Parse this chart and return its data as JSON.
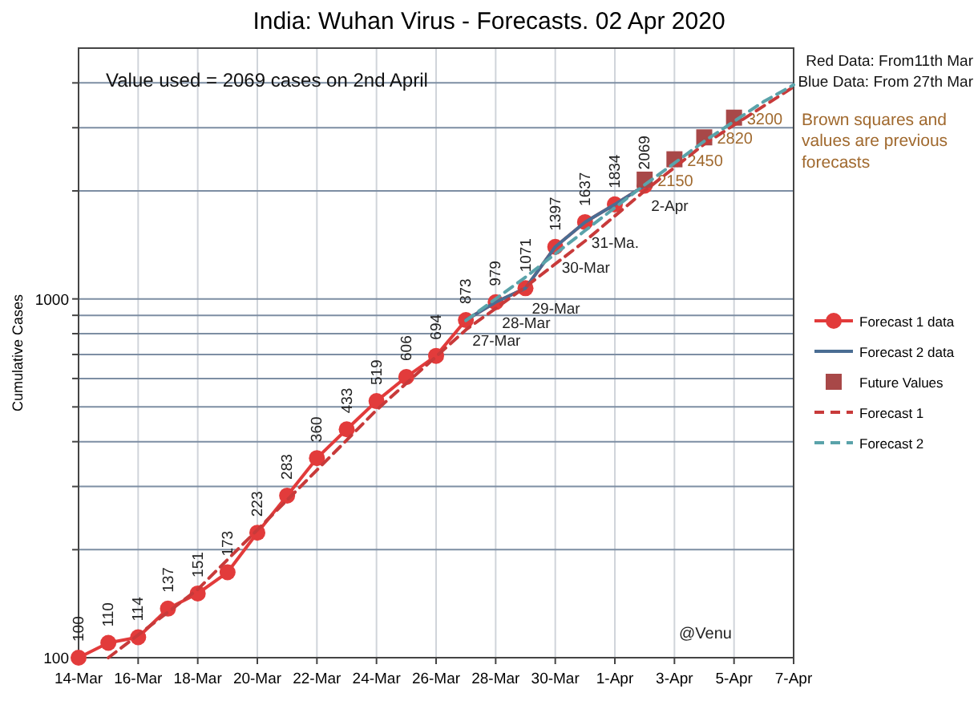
{
  "chart_data": {
    "type": "line",
    "title": "India: Wuhan Virus - Forecasts. 02 Apr 2020",
    "ylabel": "Cumulative Cases",
    "log": "y",
    "grid": true,
    "legend": "right",
    "xlim": [
      "2020-03-14",
      "2020-04-07"
    ],
    "xticks": [
      {
        "value": "2020-03-14",
        "label": "14-Mar"
      },
      {
        "value": "2020-03-16",
        "label": "16-Mar"
      },
      {
        "value": "2020-03-18",
        "label": "18-Mar"
      },
      {
        "value": "2020-03-20",
        "label": "20-Mar"
      },
      {
        "value": "2020-03-22",
        "label": "22-Mar"
      },
      {
        "value": "2020-03-24",
        "label": "24-Mar"
      },
      {
        "value": "2020-03-26",
        "label": "26-Mar"
      },
      {
        "value": "2020-03-28",
        "label": "28-Mar"
      },
      {
        "value": "2020-03-30",
        "label": "30-Mar"
      },
      {
        "value": "2020-04-01",
        "label": "1-Apr"
      },
      {
        "value": "2020-04-03",
        "label": "3-Apr"
      },
      {
        "value": "2020-04-05",
        "label": "5-Apr"
      },
      {
        "value": "2020-04-07",
        "label": "7-Apr"
      }
    ],
    "ylim": [
      100,
      5000
    ],
    "yticks": [
      100,
      {
        "value": 200,
        "label": null
      },
      {
        "value": 300,
        "label": null
      },
      {
        "value": 400,
        "label": null
      },
      {
        "value": 500,
        "label": null
      },
      {
        "value": 600,
        "label": null
      },
      {
        "value": 700,
        "label": null
      },
      {
        "value": 800,
        "label": null
      },
      {
        "value": 900,
        "label": null
      },
      1000,
      {
        "value": 2000,
        "label": null
      },
      {
        "value": 3000,
        "label": null
      },
      {
        "value": 4000,
        "label": null
      }
    ],
    "series": [
      {
        "name": "Forecast 1 data",
        "color": "#e23b3b",
        "marker": "circle",
        "line_style": "solid",
        "x": [
          "2020-03-14",
          "2020-03-15",
          "2020-03-16",
          "2020-03-17",
          "2020-03-18",
          "2020-03-19",
          "2020-03-20",
          "2020-03-21",
          "2020-03-22",
          "2020-03-23",
          "2020-03-24",
          "2020-03-25",
          "2020-03-26",
          "2020-03-27",
          "2020-03-28",
          "2020-03-29",
          "2020-03-30",
          "2020-03-31",
          "2020-04-01",
          "2020-04-02"
        ],
        "values": [
          100,
          110,
          114,
          137,
          151,
          173,
          223,
          283,
          360,
          433,
          519,
          606,
          694,
          873,
          979,
          1071,
          1397,
          1637,
          1834,
          2069
        ],
        "value_labels": [
          "100",
          "110",
          "114",
          "137",
          "151",
          "173",
          "223",
          "283",
          "360",
          "433",
          "519",
          "606",
          "694",
          "873",
          "979",
          "1071",
          "1397",
          "1637",
          "1834",
          "2069"
        ]
      },
      {
        "name": "Forecast 2 data",
        "color": "#4a6d93",
        "marker": "none",
        "line_style": "solid",
        "x": [
          "2020-03-27",
          "2020-03-28",
          "2020-03-29",
          "2020-03-30",
          "2020-03-31",
          "2020-04-01",
          "2020-04-02"
        ],
        "values": [
          873,
          979,
          1071,
          1397,
          1637,
          1834,
          2069
        ]
      },
      {
        "name": "Future Values",
        "type": "scatter",
        "color": "#a84848",
        "marker": "square",
        "x": [
          "2020-04-02",
          "2020-04-03",
          "2020-04-04",
          "2020-04-05"
        ],
        "values": [
          2150,
          2450,
          2820,
          3200
        ],
        "value_labels": [
          "2150",
          "2450",
          "2820",
          "3200"
        ]
      },
      {
        "name": "Forecast 1",
        "color": "#c83a3a",
        "marker": "none",
        "line_style": "dashed",
        "x": [
          "2020-03-15",
          "2020-03-18",
          "2020-03-21",
          "2020-03-24",
          "2020-03-27",
          "2020-03-29",
          "2020-03-31",
          "2020-04-02",
          "2020-04-04",
          "2020-04-07"
        ],
        "values": [
          100,
          155,
          275,
          490,
          820,
          1080,
          1450,
          2000,
          2700,
          3900
        ]
      },
      {
        "name": "Forecast 2",
        "color": "#5aa3aa",
        "marker": "none",
        "line_style": "dashed",
        "x": [
          "2020-03-27",
          "2020-03-29",
          "2020-03-31",
          "2020-04-02",
          "2020-04-04",
          "2020-04-06",
          "2020-04-07"
        ],
        "values": [
          870,
          1150,
          1550,
          2080,
          2750,
          3550,
          3950
        ]
      }
    ],
    "annotations": [
      "Value used = 2069 cases on 2nd April",
      "Red Data: From11th Mar",
      "Blue Data: From 27th Mar",
      "Brown squares and values are previous forecasts",
      "@Venu",
      {
        "text": "27-Mar",
        "x": "2020-03-27",
        "y": 873
      },
      {
        "text": "28-Mar",
        "x": "2020-03-28",
        "y": 979
      },
      {
        "text": "29-Mar",
        "x": "2020-03-29",
        "y": 1071
      },
      {
        "text": "30-Mar",
        "x": "2020-03-30",
        "y": 1397
      },
      {
        "text": "31-Ma.",
        "x": "2020-03-31",
        "y": 1637
      },
      {
        "text": "2-Apr",
        "x": "2020-04-02",
        "y": 2069
      }
    ]
  }
}
